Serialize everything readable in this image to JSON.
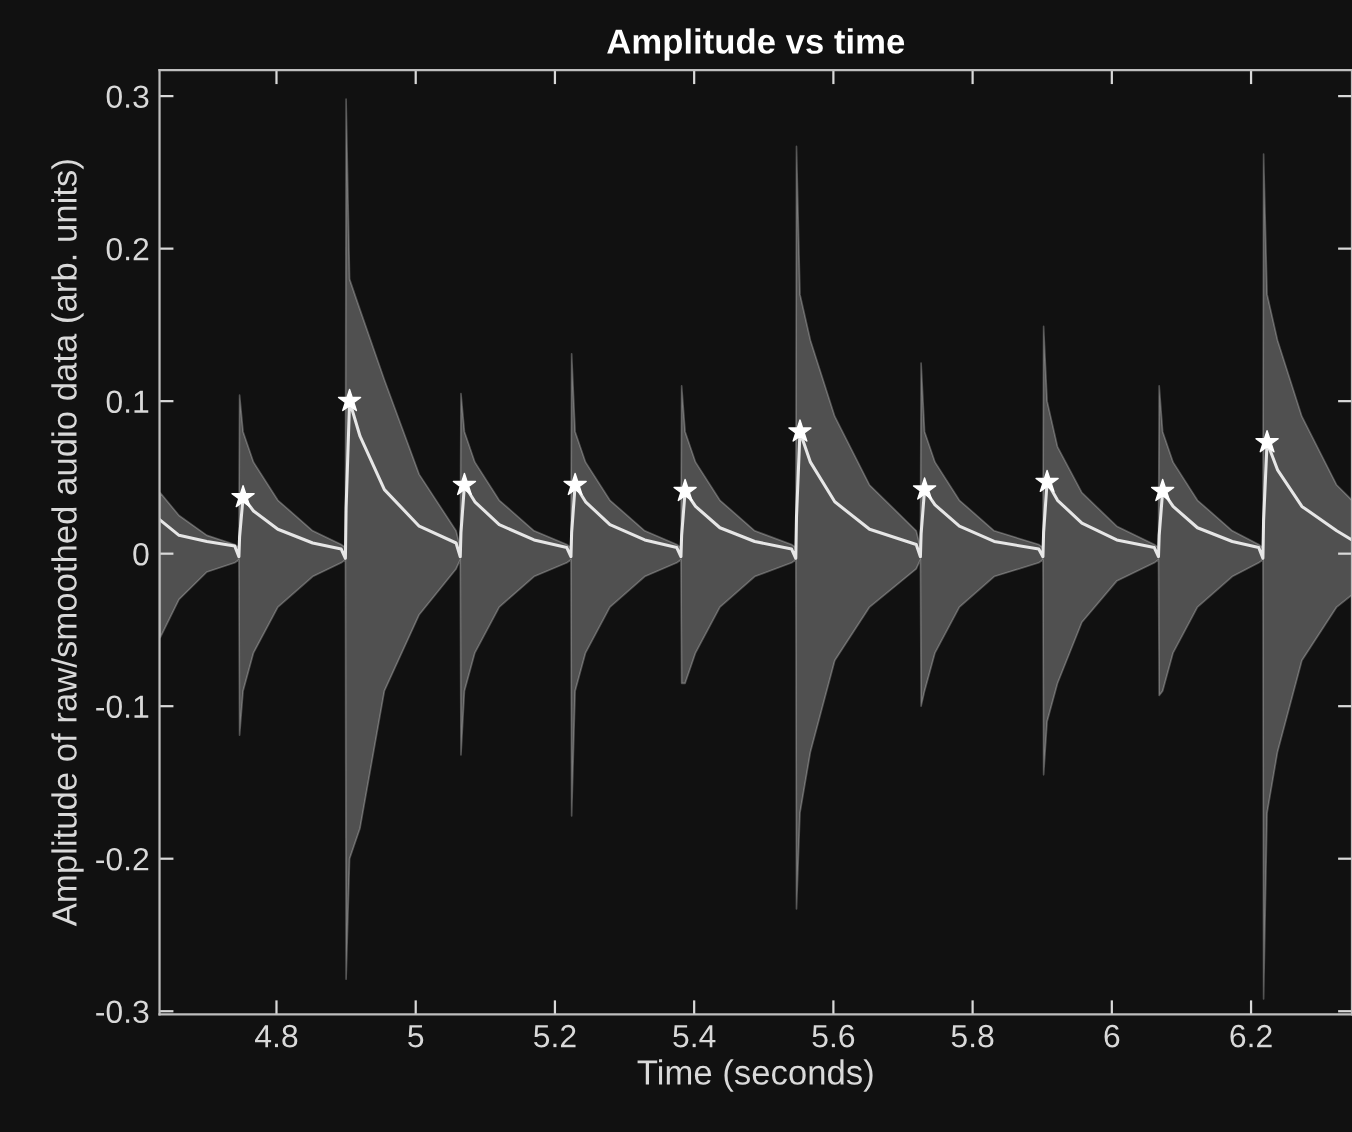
{
  "chart_data": {
    "type": "line",
    "title": "Amplitude vs time",
    "xlabel": "Time (seconds)",
    "ylabel": "Amplitude of raw/smoothed audio data (arb. units)",
    "xlim": [
      4.632,
      6.345
    ],
    "ylim": [
      -0.302,
      0.317
    ],
    "xticks": [
      4.8,
      5,
      5.2,
      5.4,
      5.6,
      5.8,
      6,
      6.2
    ],
    "yticks": [
      -0.3,
      -0.2,
      -0.1,
      0,
      0.1,
      0.2,
      0.3
    ],
    "grid": false,
    "legend": false,
    "series": [
      {
        "color": "#e6e6e6",
        "marker": "none",
        "line_style": "solid",
        "x": [
          4.633,
          4.66,
          4.7,
          4.74,
          4.746,
          4.747,
          4.752,
          4.767,
          4.802,
          4.852,
          4.893,
          4.899,
          4.9,
          4.905,
          4.92,
          4.955,
          5.005,
          5.058,
          5.064,
          5.065,
          5.07,
          5.085,
          5.12,
          5.17,
          5.217,
          5.223,
          5.224,
          5.229,
          5.244,
          5.279,
          5.329,
          5.375,
          5.381,
          5.382,
          5.387,
          5.402,
          5.437,
          5.487,
          5.54,
          5.546,
          5.547,
          5.552,
          5.567,
          5.602,
          5.652,
          5.719,
          5.725,
          5.726,
          5.731,
          5.746,
          5.781,
          5.831,
          5.895,
          5.901,
          5.902,
          5.907,
          5.922,
          5.957,
          6.007,
          6.061,
          6.067,
          6.068,
          6.073,
          6.088,
          6.123,
          6.173,
          6.211,
          6.217,
          6.218,
          6.223,
          6.238,
          6.273,
          6.323,
          6.345
        ],
        "values": [
          0.022,
          0.012,
          0.008,
          0.005,
          -0.002,
          0.011,
          0.037,
          0.028,
          0.016,
          0.007,
          0.003,
          -0.003,
          0.03,
          0.1,
          0.077,
          0.042,
          0.018,
          0.007,
          -0.002,
          0.014,
          0.045,
          0.034,
          0.019,
          0.009,
          0.004,
          -0.002,
          0.014,
          0.045,
          0.034,
          0.019,
          0.009,
          0.004,
          -0.002,
          0.012,
          0.041,
          0.031,
          0.017,
          0.008,
          0.003,
          -0.003,
          0.024,
          0.08,
          0.06,
          0.034,
          0.016,
          0.006,
          -0.002,
          0.013,
          0.042,
          0.032,
          0.018,
          0.008,
          0.003,
          -0.002,
          0.014,
          0.047,
          0.035,
          0.02,
          0.009,
          0.004,
          -0.002,
          0.012,
          0.041,
          0.031,
          0.017,
          0.008,
          0.004,
          -0.003,
          0.022,
          0.073,
          0.055,
          0.031,
          0.015,
          0.009
        ],
        "upper": [
          0.04,
          0.025,
          0.012,
          0.006,
          0.004,
          0.104,
          0.08,
          0.06,
          0.035,
          0.015,
          0.006,
          0.004,
          0.298,
          0.18,
          0.16,
          0.114,
          0.052,
          0.015,
          0.004,
          0.105,
          0.08,
          0.06,
          0.035,
          0.015,
          0.006,
          0.004,
          0.131,
          0.08,
          0.06,
          0.035,
          0.015,
          0.006,
          0.004,
          0.11,
          0.08,
          0.06,
          0.035,
          0.015,
          0.006,
          0.004,
          0.267,
          0.17,
          0.14,
          0.09,
          0.045,
          0.015,
          0.004,
          0.125,
          0.08,
          0.06,
          0.035,
          0.015,
          0.006,
          0.004,
          0.149,
          0.1,
          0.07,
          0.04,
          0.018,
          0.006,
          0.004,
          0.11,
          0.08,
          0.06,
          0.035,
          0.015,
          0.006,
          0.004,
          0.262,
          0.17,
          0.14,
          0.09,
          0.045,
          0.035
        ],
        "lower": [
          -0.055,
          -0.03,
          -0.012,
          -0.006,
          -0.004,
          -0.119,
          -0.09,
          -0.065,
          -0.035,
          -0.015,
          -0.006,
          -0.004,
          -0.279,
          -0.2,
          -0.18,
          -0.09,
          -0.04,
          -0.01,
          -0.004,
          -0.132,
          -0.09,
          -0.065,
          -0.035,
          -0.015,
          -0.006,
          -0.004,
          -0.172,
          -0.09,
          -0.065,
          -0.035,
          -0.015,
          -0.006,
          -0.004,
          -0.085,
          -0.085,
          -0.065,
          -0.035,
          -0.015,
          -0.006,
          -0.004,
          -0.233,
          -0.17,
          -0.13,
          -0.07,
          -0.035,
          -0.01,
          -0.004,
          -0.1,
          -0.09,
          -0.065,
          -0.035,
          -0.015,
          -0.006,
          -0.004,
          -0.145,
          -0.11,
          -0.085,
          -0.045,
          -0.018,
          -0.006,
          -0.004,
          -0.093,
          -0.09,
          -0.065,
          -0.035,
          -0.015,
          -0.006,
          -0.004,
          -0.292,
          -0.17,
          -0.13,
          -0.07,
          -0.035,
          -0.027
        ]
      },
      {
        "type": "scatter",
        "color": "#ffffff",
        "marker": "star",
        "x": [
          4.752,
          4.905,
          5.07,
          5.229,
          5.387,
          5.552,
          5.731,
          5.907,
          6.073,
          6.223
        ],
        "values": [
          0.037,
          0.1,
          0.045,
          0.045,
          0.041,
          0.08,
          0.042,
          0.047,
          0.041,
          0.073
        ]
      }
    ]
  }
}
